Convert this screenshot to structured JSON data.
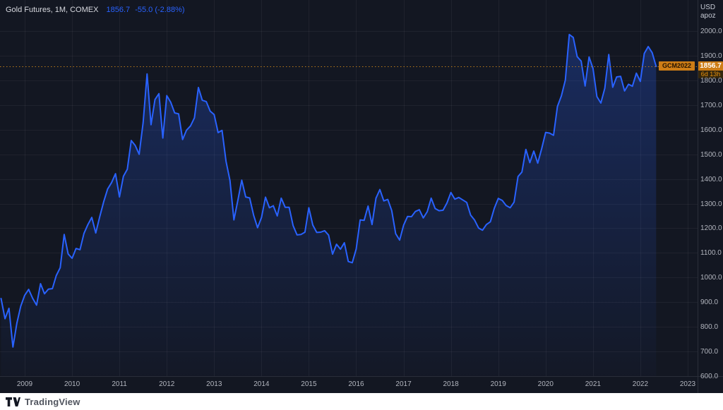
{
  "legend": {
    "symbol_line": "Gold Futures, 1M, COMEX",
    "price": "1856.7",
    "change": "-55.0 (-2.88%)"
  },
  "price_axis": {
    "currency": "USD",
    "unit": "apoz",
    "last_label": {
      "contract": "GCM2022",
      "price": "1856.7",
      "countdown": "6d 13h"
    }
  },
  "footer": {
    "brand": "TradingView"
  },
  "colors": {
    "background": "#131722",
    "line": "#2962FF",
    "area_top": "rgba(41,98,255,0.28)",
    "area_bottom": "rgba(41,98,255,0.02)",
    "grid": "rgba(255,255,255,0.05)",
    "axis_text": "#B2B5BE",
    "label_orange": "#CE7D16",
    "price_line_orange": "#B8791A",
    "legend_quote_blue": "#2962FF"
  },
  "chart_data": {
    "type": "area",
    "title": "Gold Futures, 1M, COMEX",
    "symbol": "Gold Futures",
    "interval": "1M",
    "exchange": "COMEX",
    "currency": "USD",
    "unit": "apoz",
    "legend_position": "top-left",
    "grid": true,
    "x_start": "2008-07",
    "x_step": "1 month",
    "x_tick_years": [
      2009,
      2010,
      2011,
      2012,
      2013,
      2014,
      2015,
      2016,
      2017,
      2018,
      2019,
      2020,
      2021,
      2022,
      2023
    ],
    "y_ticks": [
      2000,
      1900,
      1800,
      1700,
      1600,
      1500,
      1400,
      1300,
      1200,
      1100,
      1000,
      900,
      800,
      700,
      600
    ],
    "ylim": [
      600,
      2000
    ],
    "last_price": 1856.7,
    "change": -55.0,
    "change_pct": -2.88,
    "front_contract": "GCM2022",
    "countdown": "6d 13h",
    "values": [
      915,
      833,
      875,
      718,
      815,
      884,
      928,
      952,
      916,
      888,
      975,
      934,
      953,
      955,
      1008,
      1040,
      1175,
      1096,
      1078,
      1118,
      1113,
      1179,
      1215,
      1244,
      1181,
      1246,
      1307,
      1359,
      1385,
      1421,
      1327,
      1411,
      1439,
      1556,
      1536,
      1500,
      1628,
      1826,
      1620,
      1722,
      1746,
      1566,
      1738,
      1711,
      1668,
      1664,
      1560,
      1598,
      1615,
      1648,
      1771,
      1719,
      1714,
      1675,
      1661,
      1588,
      1597,
      1472,
      1394,
      1234,
      1312,
      1395,
      1327,
      1323,
      1253,
      1202,
      1244,
      1326,
      1283,
      1291,
      1250,
      1322,
      1285,
      1285,
      1211,
      1173,
      1175,
      1184,
      1283,
      1213,
      1183,
      1184,
      1190,
      1172,
      1095,
      1135,
      1115,
      1141,
      1065,
      1060,
      1116,
      1234,
      1232,
      1290,
      1215,
      1322,
      1357,
      1311,
      1317,
      1272,
      1178,
      1152,
      1212,
      1248,
      1247,
      1268,
      1275,
      1242,
      1267,
      1322,
      1280,
      1271,
      1273,
      1303,
      1345,
      1318,
      1325,
      1315,
      1305,
      1253,
      1233,
      1201,
      1192,
      1215,
      1226,
      1281,
      1321,
      1313,
      1292,
      1283,
      1306,
      1410,
      1428,
      1520,
      1466,
      1513,
      1464,
      1523,
      1589,
      1586,
      1577,
      1694,
      1737,
      1801,
      1986,
      1974,
      1896,
      1878,
      1777,
      1895,
      1848,
      1734,
      1708,
      1768,
      1905,
      1772,
      1814,
      1816,
      1757,
      1784,
      1776,
      1829,
      1796,
      1909,
      1937,
      1912,
      1856.7
    ]
  }
}
